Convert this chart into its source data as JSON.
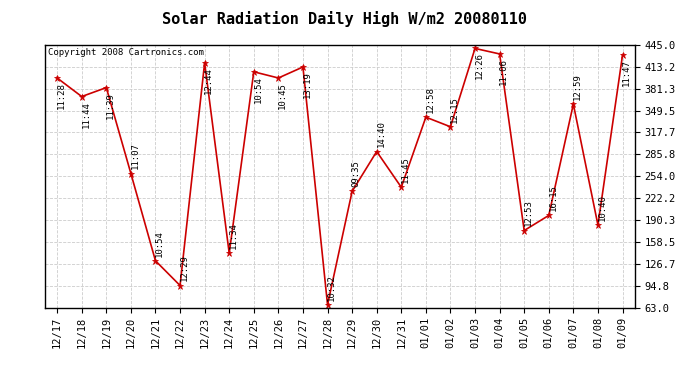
{
  "title": "Solar Radiation Daily High W/m2 20080110",
  "copyright": "Copyright 2008 Cartronics.com",
  "x_labels": [
    "12/17",
    "12/18",
    "12/19",
    "12/20",
    "12/21",
    "12/22",
    "12/23",
    "12/24",
    "12/25",
    "12/26",
    "12/27",
    "12/28",
    "12/29",
    "12/30",
    "12/31",
    "01/01",
    "01/02",
    "01/03",
    "01/04",
    "01/05",
    "01/06",
    "01/07",
    "01/08",
    "01/09"
  ],
  "y_values": [
    397,
    370,
    383,
    258,
    131,
    95,
    419,
    142,
    406,
    397,
    413,
    67,
    232,
    290,
    238,
    340,
    326,
    440,
    432,
    175,
    197,
    359,
    183,
    430
  ],
  "time_labels": [
    "11:28",
    "11:44",
    "11:39",
    "11:07",
    "10:54",
    "12:29",
    "12:44",
    "11:34",
    "10:54",
    "10:45",
    "13:19",
    "10:32",
    "09:35",
    "14:40",
    "11:45",
    "12:58",
    "12:15",
    "12:26",
    "11:06",
    "12:53",
    "16:15",
    "12:59",
    "10:40",
    "11:47"
  ],
  "y_min": 63.0,
  "y_max": 445.0,
  "y_ticks": [
    63.0,
    94.8,
    126.7,
    158.5,
    190.3,
    222.2,
    254.0,
    285.8,
    317.7,
    349.5,
    381.3,
    413.2,
    445.0
  ],
  "line_color": "#cc0000",
  "marker_color": "#cc0000",
  "bg_color": "#ffffff",
  "grid_color": "#cccccc",
  "title_fontsize": 11,
  "copyright_fontsize": 6.5,
  "label_fontsize": 6.5,
  "tick_fontsize": 7.5
}
